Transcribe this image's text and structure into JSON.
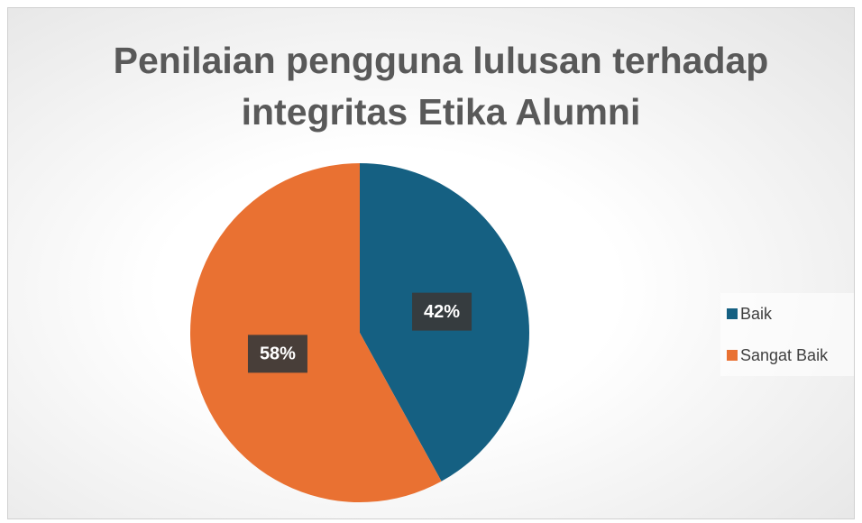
{
  "chart_data": {
    "type": "pie",
    "title": "Penilaian pengguna lulusan terhadap integritas Etika Alumni",
    "categories": [
      "Baik",
      "Sangat Baik"
    ],
    "values": [
      42,
      58
    ],
    "value_labels": [
      "42%",
      "58%"
    ],
    "colors": [
      "#156082",
      "#e97132"
    ],
    "legend": "right"
  }
}
